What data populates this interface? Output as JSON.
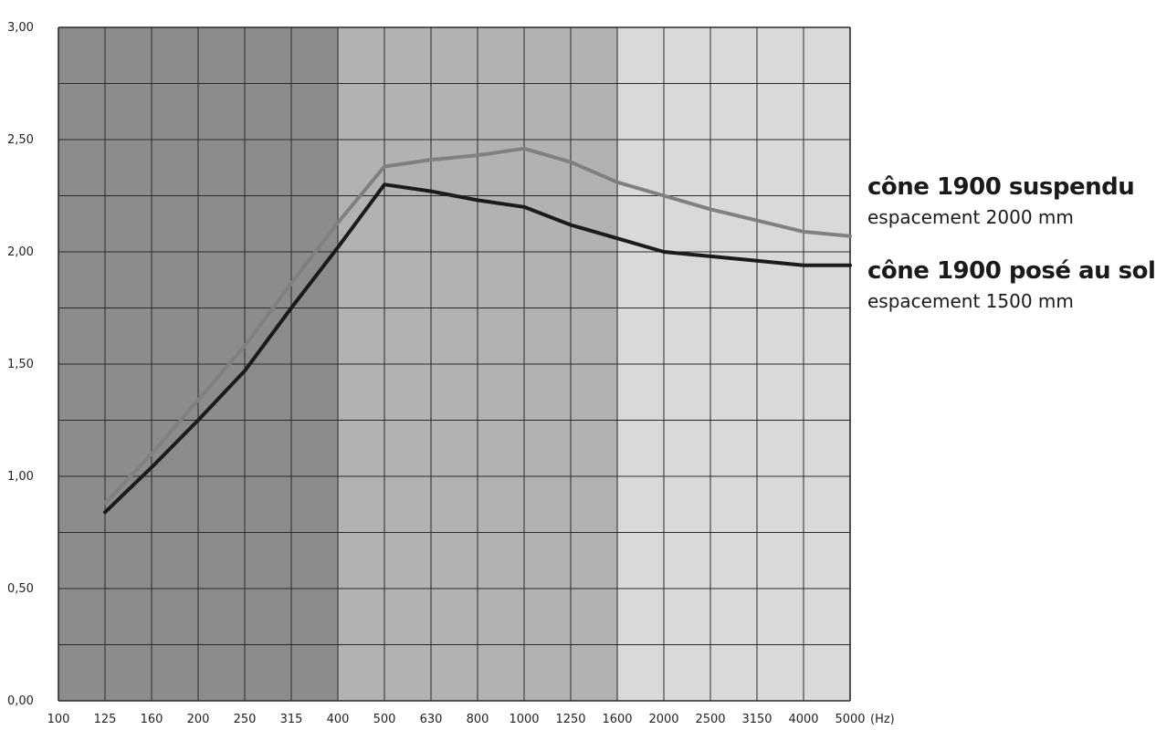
{
  "chart_data": {
    "type": "line",
    "x_categories": [
      "100",
      "125",
      "160",
      "200",
      "250",
      "315",
      "400",
      "500",
      "630",
      "800",
      "1000",
      "1250",
      "1600",
      "2000",
      "2500",
      "3150",
      "4000",
      "5000"
    ],
    "x_unit": "(Hz)",
    "y_ticks": [
      "0,00",
      "0,50",
      "1,00",
      "1,50",
      "2,00",
      "2,50",
      "3,00"
    ],
    "ylim": [
      0,
      3
    ],
    "grid": true,
    "band_colors": [
      "#8c8c8e",
      "#b2b2b4",
      "#d9d9db"
    ],
    "series": [
      {
        "name": "cône 1900 suspendu",
        "subtitle": "espacement 2000 mm",
        "color": "#808084",
        "x": [
          "125",
          "160",
          "200",
          "250",
          "315",
          "400",
          "500",
          "630",
          "800",
          "1000",
          "1250",
          "1600",
          "2000",
          "2500",
          "3150",
          "4000",
          "5000"
        ],
        "values": [
          0.88,
          1.1,
          1.34,
          1.58,
          1.86,
          2.13,
          2.38,
          2.41,
          2.43,
          2.46,
          2.4,
          2.31,
          2.25,
          2.19,
          2.14,
          2.09,
          2.07
        ]
      },
      {
        "name": "cône 1900 posé au sol",
        "subtitle": "espacement 1500 mm",
        "color": "#1b1b1b",
        "x": [
          "125",
          "160",
          "200",
          "250",
          "315",
          "400",
          "500",
          "630",
          "800",
          "1000",
          "1250",
          "1600",
          "2000",
          "2500",
          "3150",
          "4000",
          "5000"
        ],
        "values": [
          0.84,
          1.04,
          1.25,
          1.47,
          1.75,
          2.02,
          2.3,
          2.27,
          2.23,
          2.2,
          2.12,
          2.06,
          2.0,
          1.98,
          1.96,
          1.94,
          1.94
        ]
      }
    ]
  }
}
